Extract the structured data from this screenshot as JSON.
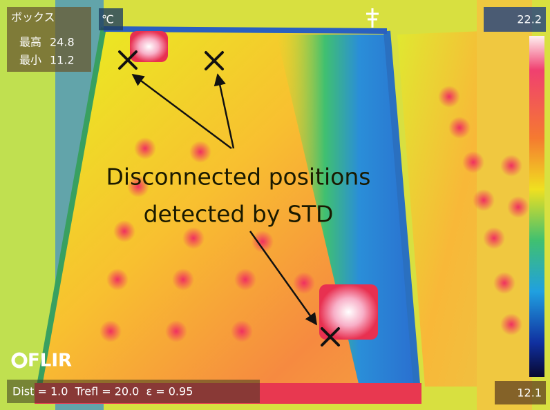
{
  "measurement_box": {
    "title": "ボックス",
    "max_label": "最高",
    "max_value": "24.8",
    "min_label": "最小",
    "min_value": "11.2"
  },
  "unit": "℃",
  "scale": {
    "top": "22.2",
    "bottom": "12.1"
  },
  "annotation": {
    "line1": "Disconnected positions",
    "line2": "detected by STD"
  },
  "logo": "FLIR",
  "footer": "Dist = 1.0  Trefl = 20.0  ε = 0.95"
}
